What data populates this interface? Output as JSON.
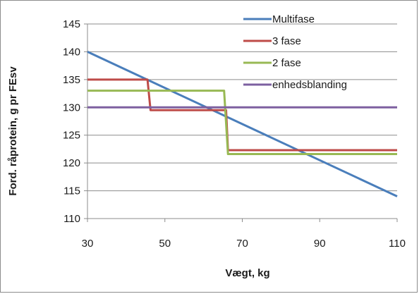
{
  "chart_data": {
    "type": "line",
    "title": "",
    "xlabel": "Vægt, kg",
    "ylabel": "Ford. råprotein, g pr FEsv",
    "xlim": [
      30,
      110
    ],
    "ylim": [
      110,
      145
    ],
    "x_ticks": [
      "30",
      "50",
      "70",
      "90",
      "110"
    ],
    "y_ticks": [
      "110",
      "115",
      "120",
      "125",
      "130",
      "135",
      "140",
      "145"
    ],
    "grid": "horizontal",
    "legend_placement": "top-right",
    "series": [
      {
        "name": "Multifase",
        "color": "#4a7ebb",
        "x": [
          30,
          110
        ],
        "y": [
          140.0,
          114.0
        ]
      },
      {
        "name": "3 fase",
        "color": "#be4b48",
        "x": [
          30,
          45.5,
          46.3,
          65.8,
          66.3,
          110
        ],
        "y": [
          135.0,
          135.0,
          129.5,
          129.5,
          122.3,
          122.3
        ]
      },
      {
        "name": "2 fase",
        "color": "#98b954",
        "x": [
          30,
          65.3,
          66.3,
          110
        ],
        "y": [
          133.0,
          133.0,
          121.6,
          121.6
        ]
      },
      {
        "name": "enhedsblanding",
        "color": "#7d60a0",
        "x": [
          30,
          110
        ],
        "y": [
          130.0,
          130.0
        ]
      }
    ]
  }
}
